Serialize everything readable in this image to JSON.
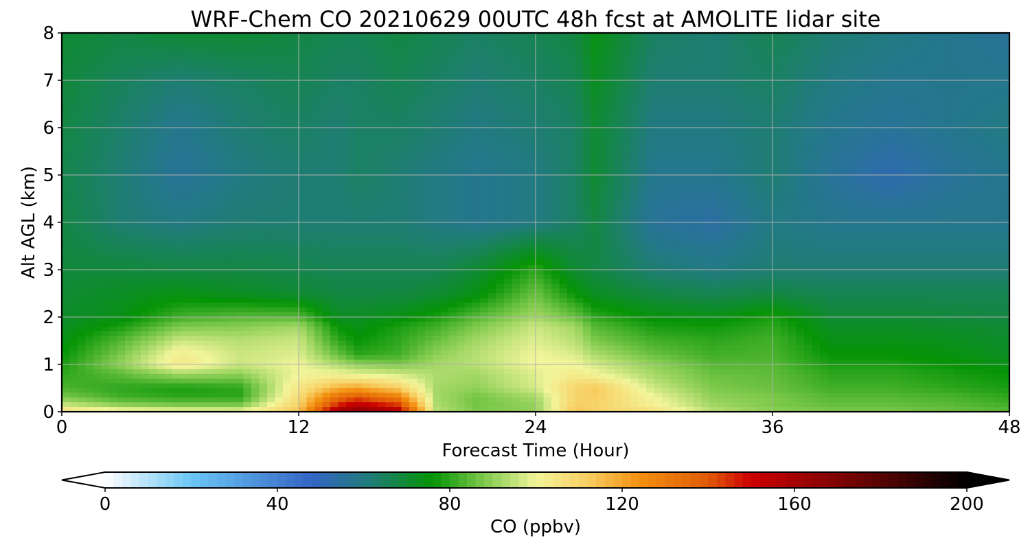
{
  "chart_data": {
    "type": "heatmap",
    "title": "WRF-Chem CO  20210629 00UTC 48h fcst at AMOLITE lidar site",
    "xlabel": "Forecast Time (Hour)",
    "ylabel": "Alt AGL (km)",
    "xlim": [
      0,
      48
    ],
    "ylim": [
      0,
      8
    ],
    "xticks": [
      "0",
      "12",
      "24",
      "36",
      "48"
    ],
    "yticks": [
      "0",
      "1",
      "2",
      "3",
      "4",
      "5",
      "6",
      "7",
      "8"
    ],
    "grid": true,
    "x": [
      0,
      3,
      6,
      9,
      12,
      14,
      15,
      17,
      19,
      21,
      24,
      26,
      27,
      30,
      33,
      36,
      39,
      42,
      45,
      48
    ],
    "y": [
      0,
      0.1,
      0.3,
      0.5,
      0.8,
      1.0,
      1.2,
      1.5,
      1.8,
      2.0,
      2.5,
      3.0,
      4.0,
      5.0,
      6.0,
      7.0,
      8.0
    ],
    "z": [
      [
        110,
        105,
        103,
        102,
        115,
        165,
        170,
        160,
        95,
        88,
        90,
        115,
        112,
        108,
        95,
        90,
        88,
        88,
        86,
        84
      ],
      [
        98,
        92,
        90,
        90,
        112,
        150,
        158,
        148,
        93,
        87,
        90,
        112,
        110,
        102,
        92,
        88,
        86,
        86,
        85,
        83
      ],
      [
        88,
        82,
        80,
        80,
        108,
        135,
        140,
        130,
        92,
        87,
        92,
        110,
        112,
        100,
        90,
        88,
        84,
        84,
        83,
        80
      ],
      [
        83,
        80,
        78,
        80,
        105,
        118,
        120,
        112,
        92,
        90,
        97,
        110,
        113,
        96,
        88,
        86,
        82,
        82,
        80,
        78
      ],
      [
        80,
        85,
        92,
        90,
        100,
        100,
        98,
        96,
        93,
        92,
        98,
        103,
        100,
        92,
        86,
        85,
        80,
        80,
        78,
        76
      ],
      [
        78,
        90,
        104,
        96,
        100,
        93,
        90,
        88,
        92,
        94,
        100,
        100,
        97,
        90,
        84,
        84,
        78,
        78,
        76,
        74
      ],
      [
        76,
        88,
        103,
        96,
        98,
        86,
        80,
        82,
        90,
        94,
        100,
        98,
        93,
        86,
        82,
        83,
        76,
        76,
        75,
        72
      ],
      [
        74,
        84,
        96,
        94,
        96,
        80,
        76,
        80,
        86,
        92,
        98,
        94,
        88,
        82,
        80,
        82,
        74,
        74,
        73,
        71
      ],
      [
        72,
        78,
        88,
        89,
        92,
        76,
        74,
        78,
        82,
        88,
        96,
        92,
        84,
        78,
        77,
        80,
        72,
        72,
        71,
        70
      ],
      [
        71,
        74,
        82,
        84,
        84,
        72,
        72,
        74,
        78,
        84,
        92,
        86,
        80,
        75,
        74,
        78,
        70,
        70,
        69,
        68
      ],
      [
        70,
        72,
        74,
        72,
        70,
        68,
        68,
        68,
        70,
        74,
        86,
        76,
        72,
        68,
        66,
        68,
        66,
        66,
        66,
        66
      ],
      [
        69,
        69,
        68,
        68,
        67,
        66,
        66,
        66,
        66,
        70,
        80,
        70,
        68,
        62,
        60,
        62,
        62,
        62,
        62,
        62
      ],
      [
        68,
        62,
        60,
        62,
        62,
        62,
        62,
        62,
        60,
        58,
        60,
        64,
        68,
        56,
        54,
        60,
        58,
        58,
        58,
        58
      ],
      [
        67,
        62,
        56,
        60,
        62,
        62,
        64,
        62,
        60,
        58,
        60,
        64,
        70,
        58,
        58,
        62,
        56,
        52,
        56,
        58
      ],
      [
        68,
        63,
        58,
        62,
        64,
        62,
        64,
        64,
        62,
        60,
        62,
        64,
        70,
        60,
        60,
        62,
        58,
        56,
        58,
        60
      ],
      [
        69,
        65,
        62,
        64,
        66,
        64,
        64,
        66,
        64,
        62,
        64,
        66,
        72,
        62,
        62,
        64,
        60,
        58,
        58,
        58
      ],
      [
        70,
        68,
        70,
        70,
        68,
        66,
        66,
        68,
        66,
        64,
        66,
        68,
        74,
        64,
        62,
        66,
        62,
        60,
        58,
        56
      ]
    ],
    "colorbar": {
      "label": "CO  (ppbv)",
      "min": 0,
      "max": 200,
      "ticks": [
        "0",
        "40",
        "80",
        "120",
        "160",
        "200"
      ],
      "extend": "both",
      "stops": [
        {
          "v": 0,
          "c": "#ffffff"
        },
        {
          "v": 20,
          "c": "#6bc6f5"
        },
        {
          "v": 48,
          "c": "#3464c4"
        },
        {
          "v": 60,
          "c": "#227a82"
        },
        {
          "v": 76,
          "c": "#059405"
        },
        {
          "v": 88,
          "c": "#7ec94c"
        },
        {
          "v": 100,
          "c": "#f2f59a"
        },
        {
          "v": 112,
          "c": "#f8cf63"
        },
        {
          "v": 124,
          "c": "#f39010"
        },
        {
          "v": 140,
          "c": "#e05a06"
        },
        {
          "v": 150,
          "c": "#cc0000"
        },
        {
          "v": 175,
          "c": "#6c0404"
        },
        {
          "v": 200,
          "c": "#000000"
        }
      ]
    }
  }
}
